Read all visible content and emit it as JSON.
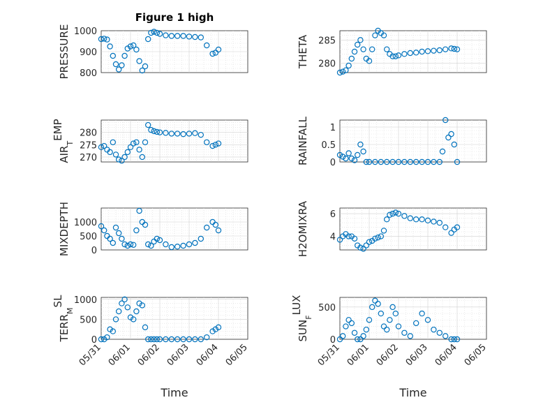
{
  "chart_data": [
    {
      "type": "scatter",
      "title": "Figure 1 high",
      "ylabel": "PRESSURE",
      "xlim": [
        "05/31",
        "06/05"
      ],
      "ylim": [
        800,
        1000
      ],
      "yticks": [
        800,
        900,
        1000
      ],
      "grid": true,
      "xticklabels": [],
      "series": [
        {
          "x": [
            0,
            0.1,
            0.2,
            0.3,
            0.4,
            0.5,
            0.6,
            0.7,
            0.8,
            0.9,
            1.0,
            1.1,
            1.2,
            1.3,
            1.4,
            1.5,
            1.6,
            1.7,
            1.8,
            1.9,
            2.0,
            2.2,
            2.4,
            2.6,
            2.8,
            3.0,
            3.2,
            3.4,
            3.6,
            3.8,
            3.9,
            4.0
          ],
          "values": [
            960,
            962,
            958,
            925,
            880,
            840,
            815,
            835,
            880,
            915,
            925,
            930,
            910,
            855,
            810,
            830,
            960,
            990,
            995,
            990,
            985,
            978,
            975,
            975,
            975,
            972,
            970,
            968,
            930,
            890,
            895,
            910
          ]
        }
      ]
    },
    {
      "type": "scatter",
      "title": "",
      "ylabel": "THETA",
      "xlim": [
        "05/31",
        "06/05"
      ],
      "ylim": [
        278,
        287
      ],
      "yticks": [
        280,
        285
      ],
      "grid": true,
      "xticklabels": [],
      "series": [
        {
          "x": [
            0,
            0.1,
            0.2,
            0.3,
            0.4,
            0.5,
            0.6,
            0.7,
            0.8,
            0.9,
            1.0,
            1.1,
            1.2,
            1.3,
            1.4,
            1.5,
            1.6,
            1.7,
            1.8,
            1.9,
            2.0,
            2.2,
            2.4,
            2.6,
            2.8,
            3.0,
            3.2,
            3.4,
            3.6,
            3.8,
            3.9,
            4.0
          ],
          "values": [
            278,
            278.2,
            278.5,
            279.5,
            281,
            282.5,
            284,
            285,
            283,
            281,
            280.5,
            283,
            286,
            287,
            286.5,
            286,
            283,
            282,
            281.5,
            281.5,
            281.7,
            282,
            282.2,
            282.3,
            282.5,
            282.6,
            282.7,
            282.8,
            283,
            283.2,
            283.1,
            283
          ]
        }
      ]
    },
    {
      "type": "scatter",
      "title": "",
      "ylabel": "AIR_TEMP",
      "xlim": [
        "05/31",
        "06/05"
      ],
      "ylim": [
        268,
        285
      ],
      "yticks": [
        270,
        275,
        280
      ],
      "grid": true,
      "xticklabels": [],
      "series": [
        {
          "x": [
            0,
            0.1,
            0.2,
            0.3,
            0.4,
            0.5,
            0.6,
            0.7,
            0.8,
            0.9,
            1.0,
            1.1,
            1.2,
            1.3,
            1.4,
            1.5,
            1.6,
            1.7,
            1.8,
            1.9,
            2.0,
            2.2,
            2.4,
            2.6,
            2.8,
            3.0,
            3.2,
            3.4,
            3.6,
            3.8,
            3.9,
            4.0
          ],
          "values": [
            274,
            274.5,
            273,
            272,
            276,
            271,
            269,
            268.5,
            270,
            272,
            274,
            275.5,
            276,
            273,
            270,
            276,
            283,
            281,
            280.5,
            280.2,
            280,
            279.8,
            279.5,
            279.5,
            279.3,
            279.5,
            279.7,
            279,
            276,
            274.5,
            275,
            275.5
          ]
        }
      ]
    },
    {
      "type": "scatter",
      "title": "",
      "ylabel": "RAINFALL",
      "xlim": [
        "05/31",
        "06/05"
      ],
      "ylim": [
        0,
        1.2
      ],
      "yticks": [
        0,
        0.5,
        1
      ],
      "grid": true,
      "xticklabels": [],
      "series": [
        {
          "x": [
            0,
            0.1,
            0.2,
            0.3,
            0.4,
            0.5,
            0.6,
            0.7,
            0.8,
            0.9,
            1.0,
            1.2,
            1.4,
            1.6,
            1.8,
            2.0,
            2.2,
            2.4,
            2.6,
            2.8,
            3.0,
            3.2,
            3.4,
            3.5,
            3.6,
            3.7,
            3.8,
            3.9,
            4.0
          ],
          "values": [
            0.2,
            0.15,
            0.1,
            0.25,
            0.1,
            0.05,
            0.2,
            0.5,
            0.3,
            0,
            0,
            0,
            0,
            0,
            0,
            0,
            0,
            0,
            0,
            0,
            0,
            0,
            0,
            0.3,
            1.2,
            0.7,
            0.8,
            0.5,
            0
          ]
        }
      ]
    },
    {
      "type": "scatter",
      "title": "",
      "ylabel": "MIXDEPTH",
      "xlim": [
        "05/31",
        "06/05"
      ],
      "ylim": [
        0,
        1500
      ],
      "yticks": [
        0,
        500,
        1000
      ],
      "grid": true,
      "xticklabels": [],
      "series": [
        {
          "x": [
            0,
            0.1,
            0.2,
            0.3,
            0.4,
            0.5,
            0.6,
            0.7,
            0.8,
            0.9,
            1.0,
            1.1,
            1.2,
            1.3,
            1.4,
            1.5,
            1.6,
            1.7,
            1.8,
            1.9,
            2.0,
            2.2,
            2.4,
            2.6,
            2.8,
            3.0,
            3.2,
            3.4,
            3.6,
            3.8,
            3.9,
            4.0
          ],
          "values": [
            850,
            700,
            500,
            400,
            250,
            800,
            600,
            400,
            200,
            150,
            200,
            180,
            700,
            1400,
            1000,
            900,
            200,
            150,
            300,
            400,
            350,
            200,
            100,
            120,
            150,
            200,
            250,
            400,
            800,
            1000,
            900,
            700
          ]
        }
      ]
    },
    {
      "type": "scatter",
      "title": "",
      "ylabel": "H2OMIXRA",
      "xlim": [
        "05/31",
        "06/05"
      ],
      "ylim": [
        2.8,
        6.5
      ],
      "yticks": [
        4,
        6
      ],
      "grid": true,
      "xticklabels": [],
      "series": [
        {
          "x": [
            0,
            0.1,
            0.2,
            0.3,
            0.4,
            0.5,
            0.6,
            0.7,
            0.8,
            0.9,
            1.0,
            1.1,
            1.2,
            1.3,
            1.4,
            1.5,
            1.6,
            1.7,
            1.8,
            1.9,
            2.0,
            2.2,
            2.4,
            2.6,
            2.8,
            3.0,
            3.2,
            3.4,
            3.6,
            3.8,
            3.9,
            4.0
          ],
          "values": [
            3.7,
            4.0,
            4.2,
            4.0,
            4.0,
            3.8,
            3.2,
            3.0,
            2.9,
            3.2,
            3.5,
            3.6,
            3.8,
            3.9,
            4.0,
            4.5,
            5.5,
            5.9,
            6.0,
            6.1,
            6.0,
            5.8,
            5.6,
            5.5,
            5.5,
            5.4,
            5.3,
            5.2,
            4.8,
            4.3,
            4.6,
            4.8
          ]
        }
      ]
    },
    {
      "type": "scatter",
      "title": "",
      "ylabel": "TERR_MSL",
      "xlabel": "Time",
      "xlim": [
        "05/31",
        "06/05"
      ],
      "ylim": [
        0,
        1050
      ],
      "yticks": [
        0,
        500,
        1000
      ],
      "grid": true,
      "xticklabels": [
        "05/31",
        "06/01",
        "06/02",
        "06/03",
        "06/04",
        "06/05"
      ],
      "series": [
        {
          "x": [
            0,
            0.1,
            0.2,
            0.3,
            0.4,
            0.5,
            0.6,
            0.7,
            0.8,
            0.9,
            1.0,
            1.1,
            1.2,
            1.3,
            1.4,
            1.5,
            1.6,
            1.7,
            1.8,
            1.9,
            2.0,
            2.2,
            2.4,
            2.6,
            2.8,
            3.0,
            3.2,
            3.4,
            3.6,
            3.8,
            3.9,
            4.0
          ],
          "values": [
            0,
            0,
            50,
            250,
            200,
            500,
            700,
            900,
            1000,
            800,
            550,
            500,
            700,
            900,
            850,
            300,
            0,
            0,
            0,
            0,
            0,
            0,
            0,
            0,
            0,
            0,
            0,
            0,
            50,
            200,
            250,
            300
          ]
        }
      ]
    },
    {
      "type": "scatter",
      "title": "",
      "ylabel": "SUN_FLUX",
      "xlabel": "Time",
      "xlim": [
        "05/31",
        "06/05"
      ],
      "ylim": [
        0,
        650
      ],
      "yticks": [
        0,
        500
      ],
      "grid": true,
      "xticklabels": [
        "05/31",
        "06/01",
        "06/02",
        "06/03",
        "06/04",
        "06/05"
      ],
      "series": [
        {
          "x": [
            0,
            0.1,
            0.2,
            0.3,
            0.4,
            0.5,
            0.6,
            0.7,
            0.8,
            0.9,
            1.0,
            1.1,
            1.2,
            1.3,
            1.4,
            1.5,
            1.6,
            1.7,
            1.8,
            1.9,
            2.0,
            2.2,
            2.4,
            2.6,
            2.8,
            3.0,
            3.2,
            3.4,
            3.6,
            3.8,
            3.9,
            4.0
          ],
          "values": [
            0,
            50,
            200,
            300,
            250,
            100,
            0,
            0,
            50,
            150,
            300,
            500,
            600,
            550,
            400,
            200,
            150,
            300,
            500,
            400,
            200,
            100,
            50,
            250,
            400,
            300,
            150,
            100,
            50,
            0,
            0,
            0
          ]
        }
      ]
    }
  ]
}
